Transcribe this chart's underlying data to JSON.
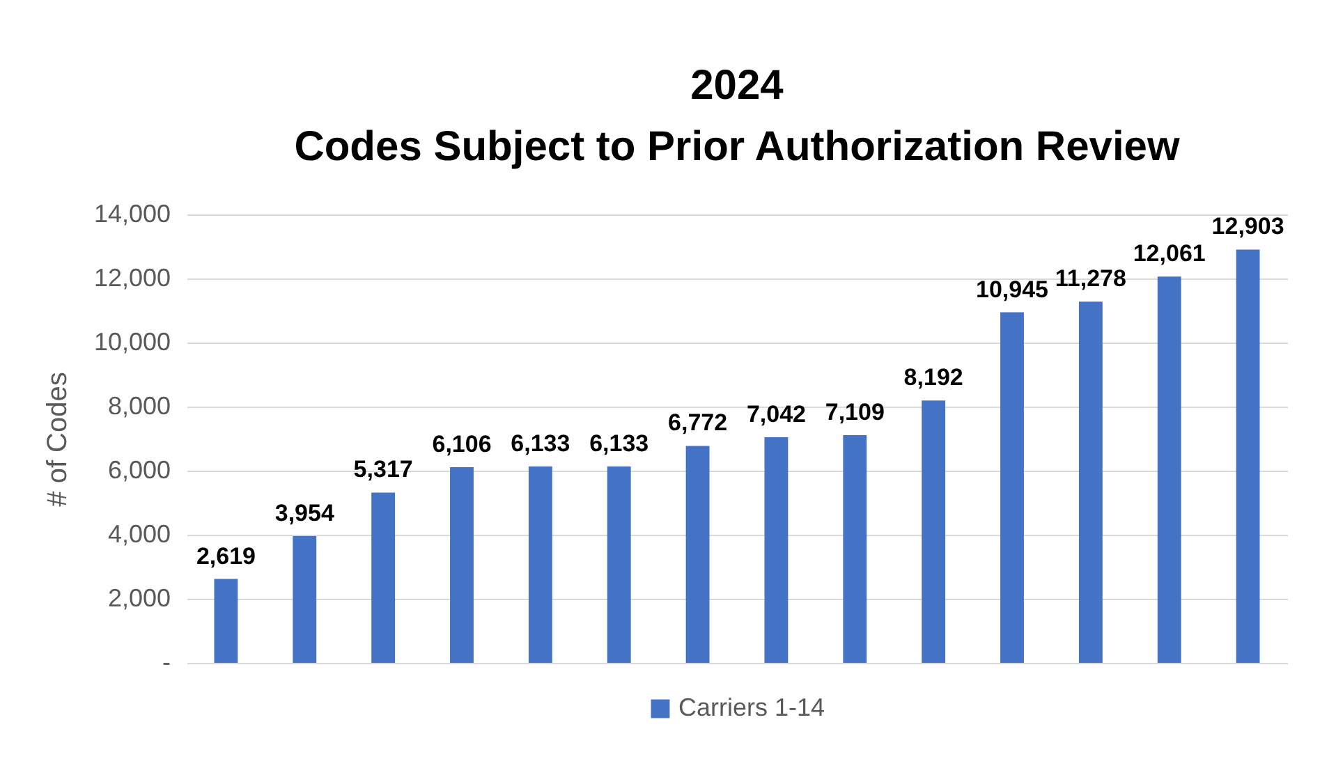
{
  "chart_data": {
    "type": "bar",
    "title": "2024",
    "subtitle": "Codes Subject to Prior Authorization Review",
    "ylabel": "# of Codes",
    "categories": [
      null,
      null,
      null,
      null,
      null,
      null,
      null,
      null,
      null,
      null,
      null,
      null,
      null,
      null
    ],
    "series": [
      {
        "name": "Carriers 1-14",
        "color": "#4472c4",
        "values": [
          2619,
          3954,
          5317,
          6106,
          6133,
          6133,
          6772,
          7042,
          7109,
          8192,
          10945,
          11278,
          12061,
          12903
        ],
        "value_labels": [
          "2,619",
          "3,954",
          "5,317",
          "6,106",
          "6,133",
          "6,133",
          "6,772",
          "7,042",
          "7,109",
          "8,192",
          "10,945",
          "11,278",
          "12,061",
          "12,903"
        ]
      }
    ],
    "ylim": [
      0,
      14000
    ],
    "yticks": [
      {
        "value": 0,
        "label": "-"
      },
      {
        "value": 2000,
        "label": "2,000"
      },
      {
        "value": 4000,
        "label": "4,000"
      },
      {
        "value": 6000,
        "label": "6,000"
      },
      {
        "value": 8000,
        "label": "8,000"
      },
      {
        "value": 10000,
        "label": "10,000"
      },
      {
        "value": 12000,
        "label": "12,000"
      },
      {
        "value": 14000,
        "label": "14,000"
      }
    ],
    "grid": "y",
    "legend": "bottom"
  }
}
